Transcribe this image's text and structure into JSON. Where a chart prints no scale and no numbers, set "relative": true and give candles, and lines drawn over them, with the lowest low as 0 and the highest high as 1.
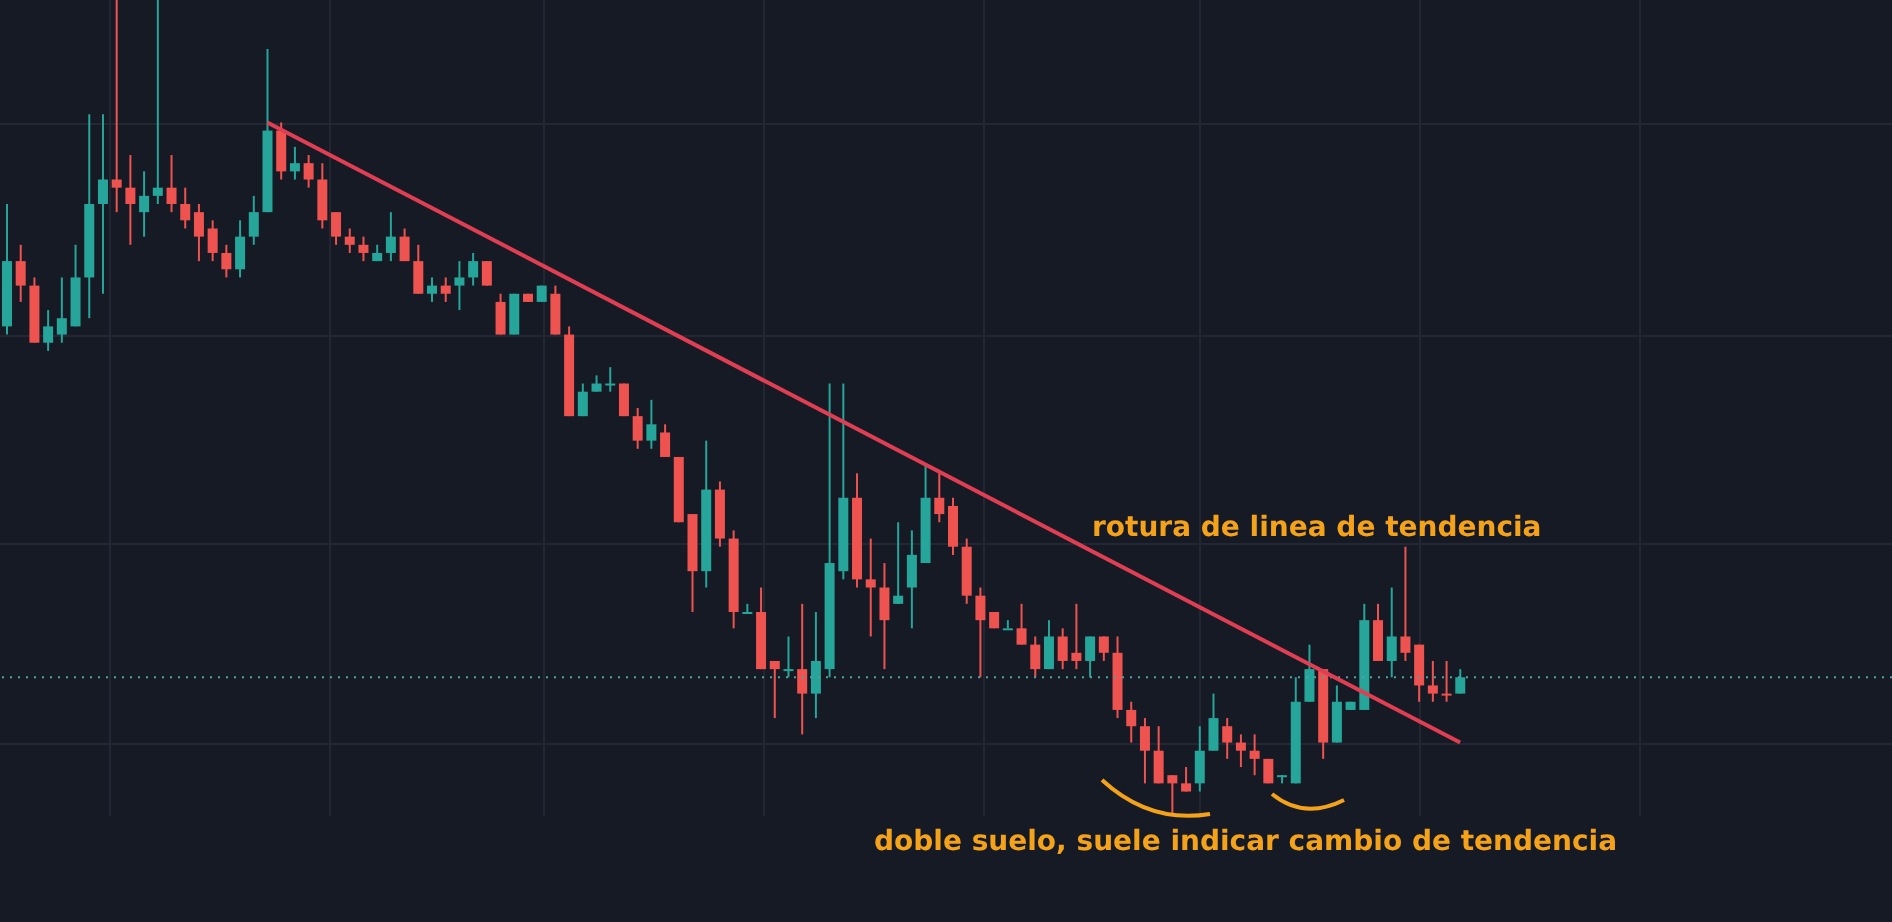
{
  "chart_data": {
    "type": "candlestick",
    "relative": true,
    "grid": true,
    "categories": [
      null,
      null,
      null,
      null,
      null,
      null,
      null,
      null,
      null,
      null,
      null,
      null,
      null,
      null,
      null,
      null,
      null,
      null,
      null,
      null,
      null,
      null,
      null,
      null,
      null,
      null,
      null,
      null,
      null,
      null,
      null,
      null,
      null,
      null,
      null,
      null,
      null,
      null,
      null,
      null,
      null,
      null,
      null,
      null,
      null,
      null,
      null,
      null,
      null,
      null,
      null,
      null,
      null,
      null,
      null,
      null,
      null,
      null,
      null,
      null,
      null,
      null,
      null,
      null,
      null,
      null,
      null,
      null,
      null,
      null,
      null,
      null,
      null,
      null,
      null,
      null,
      null,
      null,
      null,
      null,
      null,
      null,
      null,
      null,
      null,
      null,
      null,
      null,
      null,
      null,
      null,
      null,
      null,
      null,
      null,
      null,
      null,
      null,
      null,
      null,
      null,
      null,
      null,
      null,
      null,
      null,
      null
    ],
    "ohlc": [
      [
        0.6,
        0.75,
        0.59,
        0.68
      ],
      [
        0.68,
        0.7,
        0.63,
        0.65
      ],
      [
        0.65,
        0.66,
        0.58,
        0.58
      ],
      [
        0.58,
        0.62,
        0.57,
        0.6
      ],
      [
        0.59,
        0.66,
        0.58,
        0.61
      ],
      [
        0.6,
        0.7,
        0.6,
        0.66
      ],
      [
        0.66,
        0.86,
        0.61,
        0.75
      ],
      [
        0.75,
        0.86,
        0.64,
        0.78
      ],
      [
        0.78,
        1.0,
        0.74,
        0.77
      ],
      [
        0.77,
        0.81,
        0.7,
        0.75
      ],
      [
        0.74,
        0.79,
        0.71,
        0.76
      ],
      [
        0.76,
        1.0,
        0.75,
        0.77
      ],
      [
        0.77,
        0.81,
        0.74,
        0.75
      ],
      [
        0.75,
        0.77,
        0.72,
        0.73
      ],
      [
        0.74,
        0.75,
        0.68,
        0.71
      ],
      [
        0.72,
        0.73,
        0.68,
        0.69
      ],
      [
        0.69,
        0.7,
        0.66,
        0.67
      ],
      [
        0.67,
        0.73,
        0.66,
        0.71
      ],
      [
        0.71,
        0.76,
        0.7,
        0.74
      ],
      [
        0.74,
        0.94,
        0.74,
        0.84
      ],
      [
        0.84,
        0.85,
        0.78,
        0.79
      ],
      [
        0.79,
        0.82,
        0.78,
        0.8
      ],
      [
        0.8,
        0.81,
        0.77,
        0.78
      ],
      [
        0.78,
        0.8,
        0.72,
        0.73
      ],
      [
        0.74,
        0.74,
        0.7,
        0.71
      ],
      [
        0.71,
        0.72,
        0.69,
        0.7
      ],
      [
        0.7,
        0.71,
        0.68,
        0.69
      ],
      [
        0.68,
        0.7,
        0.68,
        0.69
      ],
      [
        0.69,
        0.74,
        0.68,
        0.71
      ],
      [
        0.71,
        0.72,
        0.68,
        0.68
      ],
      [
        0.68,
        0.7,
        0.64,
        0.64
      ],
      [
        0.64,
        0.66,
        0.63,
        0.65
      ],
      [
        0.65,
        0.66,
        0.63,
        0.64
      ],
      [
        0.65,
        0.68,
        0.62,
        0.66
      ],
      [
        0.66,
        0.69,
        0.65,
        0.68
      ],
      [
        0.68,
        0.68,
        0.65,
        0.65
      ],
      [
        0.63,
        0.64,
        0.59,
        0.59
      ],
      [
        0.59,
        0.64,
        0.59,
        0.64
      ],
      [
        0.64,
        0.64,
        0.63,
        0.63
      ],
      [
        0.63,
        0.65,
        0.63,
        0.65
      ],
      [
        0.64,
        0.65,
        0.59,
        0.59
      ],
      [
        0.59,
        0.6,
        0.49,
        0.49
      ],
      [
        0.49,
        0.53,
        0.49,
        0.52
      ],
      [
        0.52,
        0.54,
        0.52,
        0.53
      ],
      [
        0.53,
        0.55,
        0.52,
        0.53
      ],
      [
        0.53,
        0.53,
        0.49,
        0.49
      ],
      [
        0.49,
        0.5,
        0.45,
        0.46
      ],
      [
        0.46,
        0.51,
        0.45,
        0.48
      ],
      [
        0.47,
        0.48,
        0.44,
        0.44
      ],
      [
        0.44,
        0.44,
        0.36,
        0.36
      ],
      [
        0.37,
        0.37,
        0.25,
        0.3
      ],
      [
        0.3,
        0.46,
        0.28,
        0.4
      ],
      [
        0.4,
        0.41,
        0.33,
        0.34
      ],
      [
        0.34,
        0.35,
        0.23,
        0.25
      ],
      [
        0.25,
        0.26,
        0.25,
        0.25
      ],
      [
        0.25,
        0.28,
        0.18,
        0.18
      ],
      [
        0.19,
        0.19,
        0.12,
        0.18
      ],
      [
        0.18,
        0.22,
        0.17,
        0.18
      ],
      [
        0.18,
        0.26,
        0.1,
        0.15
      ],
      [
        0.15,
        0.25,
        0.12,
        0.19
      ],
      [
        0.18,
        0.53,
        0.17,
        0.31
      ],
      [
        0.3,
        0.53,
        0.29,
        0.39
      ],
      [
        0.39,
        0.42,
        0.28,
        0.29
      ],
      [
        0.29,
        0.34,
        0.22,
        0.28
      ],
      [
        0.28,
        0.31,
        0.18,
        0.24
      ],
      [
        0.26,
        0.36,
        0.26,
        0.27
      ],
      [
        0.28,
        0.35,
        0.23,
        0.32
      ],
      [
        0.31,
        0.43,
        0.31,
        0.39
      ],
      [
        0.39,
        0.42,
        0.36,
        0.37
      ],
      [
        0.38,
        0.39,
        0.32,
        0.33
      ],
      [
        0.33,
        0.34,
        0.26,
        0.27
      ],
      [
        0.27,
        0.28,
        0.17,
        0.24
      ],
      [
        0.25,
        0.25,
        0.23,
        0.23
      ],
      [
        0.23,
        0.24,
        0.23,
        0.23
      ],
      [
        0.23,
        0.26,
        0.21,
        0.21
      ],
      [
        0.21,
        0.22,
        0.17,
        0.18
      ],
      [
        0.18,
        0.24,
        0.18,
        0.22
      ],
      [
        0.22,
        0.23,
        0.18,
        0.19
      ],
      [
        0.2,
        0.26,
        0.18,
        0.19
      ],
      [
        0.19,
        0.22,
        0.17,
        0.22
      ],
      [
        0.22,
        0.22,
        0.19,
        0.2
      ],
      [
        0.2,
        0.22,
        0.12,
        0.13
      ],
      [
        0.13,
        0.14,
        0.09,
        0.11
      ],
      [
        0.11,
        0.12,
        0.04,
        0.08
      ],
      [
        0.08,
        0.11,
        0.04,
        0.04
      ],
      [
        0.05,
        0.05,
        0.0,
        0.04
      ],
      [
        0.04,
        0.06,
        0.03,
        0.03
      ],
      [
        0.04,
        0.11,
        0.03,
        0.08
      ],
      [
        0.08,
        0.15,
        0.08,
        0.12
      ],
      [
        0.11,
        0.12,
        0.07,
        0.09
      ],
      [
        0.09,
        0.1,
        0.06,
        0.08
      ],
      [
        0.08,
        0.1,
        0.05,
        0.07
      ],
      [
        0.07,
        0.07,
        0.04,
        0.04
      ],
      [
        0.05,
        0.05,
        0.04,
        0.05
      ],
      [
        0.04,
        0.17,
        0.04,
        0.14
      ],
      [
        0.14,
        0.21,
        0.14,
        0.18
      ],
      [
        0.18,
        0.18,
        0.07,
        0.09
      ],
      [
        0.09,
        0.16,
        0.09,
        0.14
      ],
      [
        0.13,
        0.14,
        0.13,
        0.14
      ],
      [
        0.13,
        0.26,
        0.13,
        0.24
      ],
      [
        0.24,
        0.26,
        0.19,
        0.19
      ],
      [
        0.19,
        0.28,
        0.17,
        0.22
      ],
      [
        0.22,
        0.33,
        0.19,
        0.2
      ],
      [
        0.21,
        0.21,
        0.14,
        0.16
      ],
      [
        0.16,
        0.19,
        0.14,
        0.15
      ],
      [
        0.15,
        0.19,
        0.14,
        0.15
      ],
      [
        0.15,
        0.18,
        0.15,
        0.17
      ]
    ],
    "colors": [
      "#26a69a",
      "#ef5350",
      "#ef5350",
      "#26a69a",
      "#26a69a",
      "#26a69a",
      "#26a69a",
      "#26a69a",
      "#ef5350",
      "#ef5350",
      "#26a69a",
      "#26a69a",
      "#ef5350",
      "#ef5350",
      "#ef5350",
      "#ef5350",
      "#ef5350",
      "#26a69a",
      "#26a69a",
      "#26a69a",
      "#ef5350",
      "#26a69a",
      "#ef5350",
      "#ef5350",
      "#ef5350",
      "#ef5350",
      "#ef5350",
      "#26a69a",
      "#26a69a",
      "#ef5350",
      "#ef5350",
      "#26a69a",
      "#ef5350",
      "#26a69a",
      "#26a69a",
      "#ef5350",
      "#ef5350",
      "#26a69a",
      "#ef5350",
      "#26a69a",
      "#ef5350",
      "#ef5350",
      "#26a69a",
      "#26a69a",
      "#26a69a",
      "#ef5350",
      "#ef5350",
      "#26a69a",
      "#ef5350",
      "#ef5350",
      "#ef5350",
      "#26a69a",
      "#ef5350",
      "#ef5350",
      "#26a69a",
      "#ef5350",
      "#ef5350",
      "#26a69a",
      "#ef5350",
      "#26a69a",
      "#26a69a",
      "#26a69a",
      "#ef5350",
      "#ef5350",
      "#ef5350",
      "#26a69a",
      "#26a69a",
      "#26a69a",
      "#ef5350",
      "#ef5350",
      "#ef5350",
      "#ef5350",
      "#ef5350",
      "#26a69a",
      "#ef5350",
      "#ef5350",
      "#26a69a",
      "#ef5350",
      "#ef5350",
      "#26a69a",
      "#ef5350",
      "#ef5350",
      "#ef5350",
      "#ef5350",
      "#ef5350",
      "#ef5350",
      "#ef5350",
      "#26a69a",
      "#26a69a",
      "#ef5350",
      "#ef5350",
      "#ef5350",
      "#ef5350",
      "#26a69a",
      "#26a69a",
      "#26a69a",
      "#ef5350",
      "#26a69a",
      "#26a69a",
      "#26a69a",
      "#ef5350",
      "#26a69a",
      "#ef5350",
      "#ef5350",
      "#ef5350",
      "#ef5350",
      "#26a69a"
    ],
    "series": [
      {
        "type": "line",
        "color": "#e03e52",
        "values": [
          null,
          null,
          null,
          null,
          null,
          null,
          null,
          null,
          null,
          null,
          null,
          null,
          null,
          null,
          null,
          null,
          null,
          null,
          null,
          0.85,
          null,
          null,
          null,
          null,
          null,
          null,
          null,
          null,
          null,
          null,
          null,
          null,
          null,
          null,
          null,
          null,
          null,
          null,
          null,
          null,
          null,
          null,
          null,
          null,
          null,
          null,
          null,
          null,
          null,
          null,
          null,
          null,
          null,
          null,
          null,
          null,
          null,
          null,
          null,
          null,
          null,
          null,
          null,
          null,
          null,
          null,
          null,
          null,
          null,
          null,
          null,
          null,
          null,
          null,
          null,
          null,
          null,
          null,
          null,
          null,
          null,
          null,
          null,
          null,
          null,
          null,
          null,
          null,
          null,
          null,
          null,
          null,
          null,
          null,
          null,
          null,
          null,
          null,
          null,
          null,
          null,
          null,
          null,
          null,
          null,
          null,
          0.09
        ]
      }
    ],
    "ref_lines": [
      {
        "axis": "y",
        "value": 0.17,
        "color": "#4fa3a0",
        "line_style": "dotted"
      }
    ],
    "annotations": [
      "rotura de linea de tendencia",
      "doble suelo, suele indicar cambio de tendencia"
    ]
  }
}
